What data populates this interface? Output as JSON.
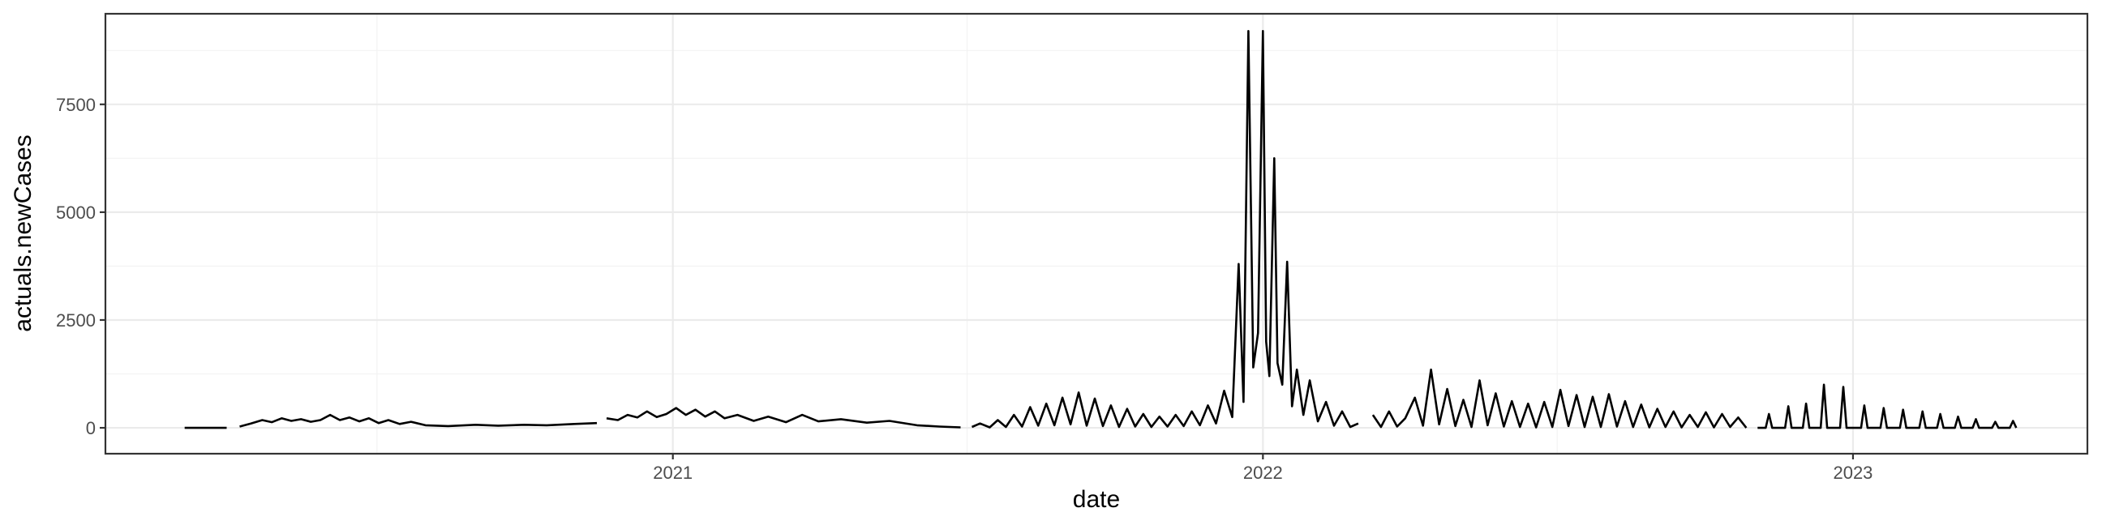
{
  "chart_data": {
    "type": "line",
    "title": "",
    "xlabel": "date",
    "ylabel": "actuals.newCases",
    "grid": true,
    "legend": "none",
    "line_color": "#000000",
    "xlim": [
      "2020-01-16",
      "2023-05-26"
    ],
    "ylim": [
      -600,
      9600
    ],
    "x_ticks": [
      {
        "value": "2021-01-01",
        "label": "2021"
      },
      {
        "value": "2022-01-01",
        "label": "2022"
      },
      {
        "value": "2023-01-01",
        "label": "2023"
      }
    ],
    "y_ticks": [
      {
        "value": 0,
        "label": "0"
      },
      {
        "value": 2500,
        "label": "2500"
      },
      {
        "value": 5000,
        "label": "5000"
      },
      {
        "value": 7500,
        "label": "7500"
      }
    ],
    "series": [
      {
        "segments": [
          {
            "x": [
              "2020-03-05",
              "2020-03-20",
              "2020-03-31"
            ],
            "y": [
              0,
              0,
              0
            ]
          },
          {
            "x": [
              "2020-04-08",
              "2020-04-15",
              "2020-04-22",
              "2020-04-28",
              "2020-05-04",
              "2020-05-10",
              "2020-05-16",
              "2020-05-22",
              "2020-05-28",
              "2020-06-03",
              "2020-06-09",
              "2020-06-15",
              "2020-06-21",
              "2020-06-27",
              "2020-07-03",
              "2020-07-09",
              "2020-07-16",
              "2020-07-23",
              "2020-08-01",
              "2020-08-15",
              "2020-09-01",
              "2020-09-15",
              "2020-10-01",
              "2020-10-15",
              "2020-11-01",
              "2020-11-15"
            ],
            "y": [
              30,
              100,
              180,
              130,
              220,
              160,
              200,
              140,
              180,
              300,
              180,
              240,
              150,
              220,
              110,
              180,
              90,
              140,
              60,
              40,
              70,
              50,
              70,
              60,
              90,
              110
            ]
          },
          {
            "x": [
              "2020-11-21",
              "2020-11-28",
              "2020-12-04",
              "2020-12-10",
              "2020-12-16",
              "2020-12-22",
              "2020-12-28",
              "2021-01-03",
              "2021-01-09",
              "2021-01-15",
              "2021-01-21",
              "2021-01-27",
              "2021-02-02",
              "2021-02-10",
              "2021-02-20",
              "2021-03-01",
              "2021-03-12",
              "2021-03-22",
              "2021-04-01",
              "2021-04-15",
              "2021-05-01",
              "2021-05-15",
              "2021-06-01",
              "2021-06-15",
              "2021-06-28"
            ],
            "y": [
              220,
              180,
              300,
              240,
              380,
              250,
              320,
              460,
              300,
              420,
              260,
              380,
              220,
              300,
              160,
              260,
              130,
              300,
              150,
              200,
              120,
              160,
              60,
              30,
              10
            ]
          },
          {
            "x": [
              "2021-07-05",
              "2021-07-10",
              "2021-07-16",
              "2021-07-21",
              "2021-07-26",
              "2021-07-31",
              "2021-08-05",
              "2021-08-10",
              "2021-08-15",
              "2021-08-20",
              "2021-08-25",
              "2021-08-30",
              "2021-09-04",
              "2021-09-09",
              "2021-09-14",
              "2021-09-19",
              "2021-09-24",
              "2021-09-29",
              "2021-10-04",
              "2021-10-09",
              "2021-10-14",
              "2021-10-19",
              "2021-10-24",
              "2021-10-29",
              "2021-11-03",
              "2021-11-08",
              "2021-11-13",
              "2021-11-18",
              "2021-11-23",
              "2021-11-28",
              "2021-12-03",
              "2021-12-08",
              "2021-12-13",
              "2021-12-17",
              "2021-12-20",
              "2021-12-23",
              "2021-12-26",
              "2021-12-29",
              "2022-01-01",
              "2022-01-03",
              "2022-01-05",
              "2022-01-08",
              "2022-01-10",
              "2022-01-13",
              "2022-01-16",
              "2022-01-19",
              "2022-01-22",
              "2022-01-26",
              "2022-01-30",
              "2022-02-04",
              "2022-02-09",
              "2022-02-14",
              "2022-02-19",
              "2022-02-24",
              "2022-03-01"
            ],
            "y": [
              20,
              100,
              10,
              180,
              20,
              300,
              30,
              480,
              50,
              560,
              60,
              700,
              80,
              820,
              50,
              680,
              40,
              520,
              20,
              440,
              30,
              320,
              20,
              260,
              30,
              300,
              40,
              380,
              60,
              520,
              100,
              860,
              250,
              3800,
              600,
              9200,
              1400,
              2200,
              9200,
              2000,
              1200,
              6250,
              1500,
              1000,
              3850,
              500,
              1350,
              300,
              1100,
              150,
              600,
              50,
              380,
              20,
              100
            ]
          },
          {
            "x": [
              "2022-03-10",
              "2022-03-15",
              "2022-03-20",
              "2022-03-25",
              "2022-03-30",
              "2022-04-05",
              "2022-04-10",
              "2022-04-15",
              "2022-04-20",
              "2022-04-25",
              "2022-04-30",
              "2022-05-05",
              "2022-05-10",
              "2022-05-15",
              "2022-05-20",
              "2022-05-25",
              "2022-05-30",
              "2022-06-04",
              "2022-06-09",
              "2022-06-14",
              "2022-06-19",
              "2022-06-24",
              "2022-06-29",
              "2022-07-04",
              "2022-07-09",
              "2022-07-14",
              "2022-07-19",
              "2022-07-24",
              "2022-07-29",
              "2022-08-03",
              "2022-08-08",
              "2022-08-13",
              "2022-08-18",
              "2022-08-23",
              "2022-08-28",
              "2022-09-02",
              "2022-09-07",
              "2022-09-12",
              "2022-09-17",
              "2022-09-22",
              "2022-09-27",
              "2022-10-02",
              "2022-10-07",
              "2022-10-12",
              "2022-10-17",
              "2022-10-22",
              "2022-10-27"
            ],
            "y": [
              300,
              20,
              380,
              30,
              220,
              700,
              50,
              1350,
              80,
              900,
              40,
              650,
              20,
              1100,
              60,
              800,
              30,
              620,
              20,
              560,
              10,
              600,
              20,
              880,
              40,
              760,
              20,
              720,
              20,
              780,
              30,
              620,
              20,
              540,
              10,
              440,
              20,
              380,
              10,
              300,
              20,
              360,
              10,
              320,
              20,
              240,
              0
            ]
          },
          {
            "x": [
              "2022-11-03",
              "2022-11-08",
              "2022-11-10",
              "2022-11-12",
              "2022-11-20",
              "2022-11-22",
              "2022-11-24",
              "2022-12-01",
              "2022-12-03",
              "2022-12-05",
              "2022-12-12",
              "2022-12-14",
              "2022-12-16",
              "2022-12-24",
              "2022-12-26",
              "2022-12-28",
              "2023-01-06",
              "2023-01-08",
              "2023-01-10",
              "2023-01-18",
              "2023-01-20",
              "2023-01-22",
              "2023-01-30",
              "2023-02-01",
              "2023-02-03",
              "2023-02-11",
              "2023-02-13",
              "2023-02-15",
              "2023-02-22",
              "2023-02-24",
              "2023-02-26",
              "2023-03-05",
              "2023-03-07",
              "2023-03-09",
              "2023-03-16",
              "2023-03-18",
              "2023-03-20",
              "2023-03-28",
              "2023-03-30",
              "2023-04-01",
              "2023-04-08",
              "2023-04-10",
              "2023-04-12"
            ],
            "y": [
              0,
              0,
              320,
              0,
              0,
              500,
              0,
              0,
              560,
              0,
              0,
              1000,
              0,
              0,
              950,
              0,
              0,
              520,
              0,
              0,
              460,
              0,
              0,
              420,
              0,
              0,
              380,
              0,
              0,
              320,
              0,
              0,
              260,
              0,
              0,
              200,
              0,
              0,
              140,
              0,
              0,
              160,
              0
            ]
          }
        ]
      }
    ]
  }
}
